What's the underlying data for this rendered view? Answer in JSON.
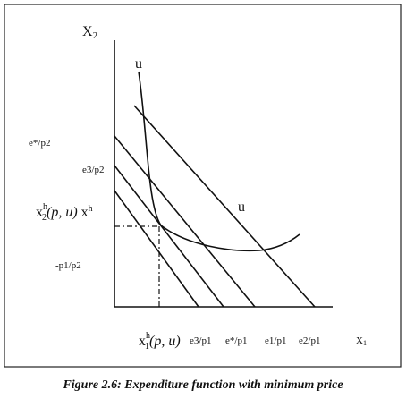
{
  "diagram": {
    "y_axis_label": {
      "base": "X",
      "sub": "2"
    },
    "x_axis_label": {
      "base": "X",
      "sub": "1"
    },
    "curve_label_top": "u",
    "curve_label_right": "u",
    "y_labels": [
      "e*/p2",
      "e3/p2",
      "-p1/p2"
    ],
    "x2h_label": {
      "base": "x",
      "sub": "2",
      "sup": "h",
      "rest": "(p, u)",
      "extra_base": "x",
      "extra_sup": "h"
    },
    "x1h_label": {
      "base": "x",
      "sub": "1",
      "sup": "h",
      "rest": "(p, u)"
    },
    "x_labels": [
      "e3/p1",
      "e*/p1",
      "e1/p1",
      "e2/p1"
    ]
  },
  "caption": "Figure 2.6: Expenditure function with minimum price"
}
